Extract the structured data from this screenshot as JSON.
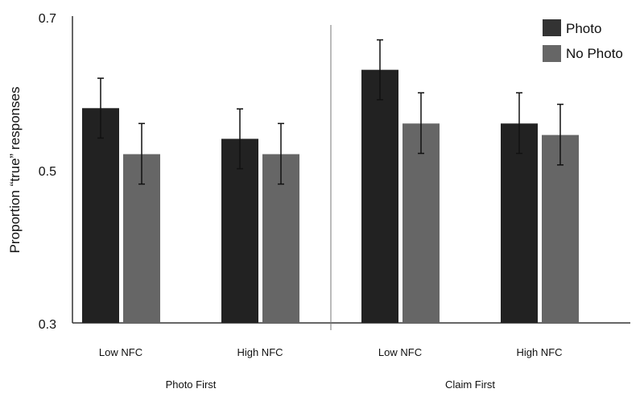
{
  "chart_data": {
    "type": "bar",
    "title": "",
    "ylabel": "Proportion “true” responses",
    "xlabel": "",
    "ylim": [
      0.3,
      0.7
    ],
    "yticks": [
      "0.3",
      "0.5",
      "0.7"
    ],
    "grid": false,
    "legend_position": "top-right",
    "groups": [
      {
        "label": "Photo First",
        "categories": [
          "Low NFC",
          "High NFC"
        ]
      },
      {
        "label": "Claim First",
        "categories": [
          "Low NFC",
          "High NFC"
        ]
      }
    ],
    "series": [
      {
        "name": "Photo",
        "color": "#222222",
        "values": [
          0.58,
          0.54,
          0.63,
          0.56
        ],
        "error_low": [
          0.541,
          0.501,
          0.591,
          0.521
        ],
        "error_high": [
          0.619,
          0.579,
          0.669,
          0.6
        ]
      },
      {
        "name": "No Photo",
        "color": "#666666",
        "values": [
          0.52,
          0.52,
          0.56,
          0.545
        ],
        "error_low": [
          0.481,
          0.481,
          0.521,
          0.506
        ],
        "error_high": [
          0.56,
          0.56,
          0.6,
          0.585
        ]
      }
    ]
  }
}
